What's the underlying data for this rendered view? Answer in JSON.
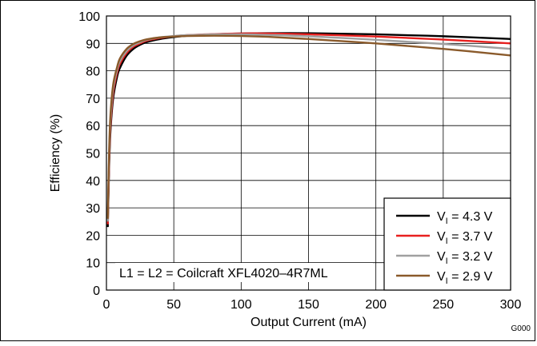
{
  "chart_data": {
    "type": "line",
    "xlabel": "Output Current (mA)",
    "ylabel": "Efficiency (%)",
    "xlim": [
      0,
      300
    ],
    "ylim": [
      0,
      100
    ],
    "xticks": [
      "0",
      "50",
      "100",
      "150",
      "200",
      "250",
      "300"
    ],
    "yticks": [
      "0",
      "10",
      "20",
      "30",
      "40",
      "50",
      "60",
      "70",
      "80",
      "90",
      "100"
    ],
    "grid": true,
    "legend_position": "bottom-right",
    "annotation": "L1 = L2 = Coilcraft XFL4020–4R7ML",
    "figure_code": "G000",
    "series": [
      {
        "name_prefix": "V",
        "name_sub": "I",
        "name_suffix": " = 4.3 V",
        "color": "#000000",
        "x": [
          1,
          2,
          3,
          5,
          8,
          10,
          15,
          20,
          25,
          30,
          40,
          50,
          60,
          80,
          100,
          120,
          150,
          200,
          250,
          300
        ],
        "y": [
          23,
          45,
          58,
          70,
          78,
          81,
          85.5,
          88,
          89.5,
          90.5,
          91.6,
          92.3,
          92.8,
          93.3,
          93.6,
          93.7,
          93.7,
          93.3,
          92.6,
          91.6
        ]
      },
      {
        "name_prefix": "V",
        "name_sub": "I",
        "name_suffix": " = 3.7 V",
        "color": "#e8201f",
        "x": [
          1,
          2,
          3,
          5,
          8,
          10,
          15,
          20,
          25,
          30,
          40,
          50,
          60,
          80,
          100,
          120,
          150,
          200,
          250,
          300
        ],
        "y": [
          24,
          47,
          60,
          72,
          79.5,
          82.5,
          86.5,
          88.8,
          90,
          91,
          92,
          92.6,
          93,
          93.4,
          93.6,
          93.6,
          93.3,
          92.5,
          91.4,
          90
        ]
      },
      {
        "name_prefix": "V",
        "name_sub": "I",
        "name_suffix": " = 3.2 V",
        "color": "#a0a0a0",
        "x": [
          1,
          2,
          3,
          5,
          8,
          10,
          15,
          20,
          25,
          30,
          40,
          50,
          60,
          80,
          100,
          120,
          150,
          200,
          250,
          300
        ],
        "y": [
          25,
          49,
          62,
          73.5,
          80.5,
          83.5,
          87.2,
          89.3,
          90.4,
          91.3,
          92.2,
          92.7,
          93,
          93.3,
          93.3,
          93.1,
          92.6,
          91.3,
          89.8,
          88
        ]
      },
      {
        "name_prefix": "V",
        "name_sub": "I",
        "name_suffix": " = 2.9 V",
        "color": "#8a5a2b",
        "x": [
          1,
          2,
          3,
          5,
          8,
          10,
          15,
          20,
          25,
          30,
          40,
          50,
          60,
          80,
          100,
          120,
          150,
          200,
          250,
          300
        ],
        "y": [
          26,
          51,
          64,
          75,
          81.5,
          84.5,
          88,
          89.8,
          90.8,
          91.5,
          92.2,
          92.5,
          92.7,
          92.8,
          92.7,
          92.4,
          91.6,
          90,
          88,
          85.6
        ]
      }
    ]
  }
}
